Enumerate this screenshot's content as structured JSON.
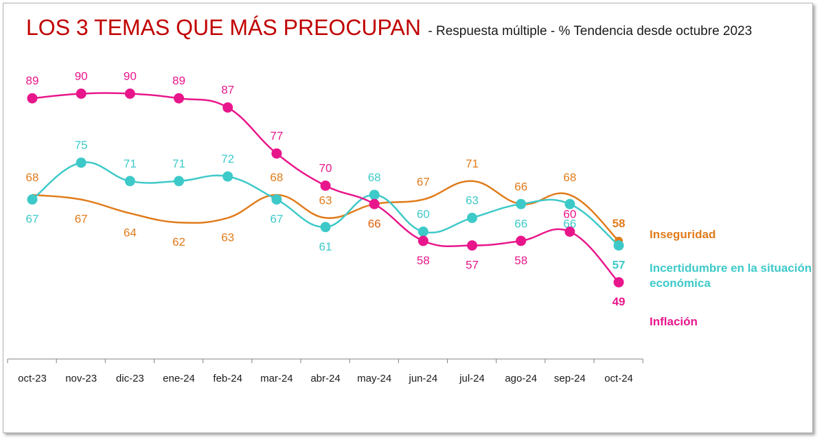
{
  "title": "LOS 3 TEMAS QUE MÁS PREOCUPAN",
  "subtitle": "- Respuesta múltiple - % Tendencia desde octubre 2023",
  "colors": {
    "title": "#c00000",
    "inseguridad": "#e07b1a",
    "incertidumbre": "#3ec9c9",
    "inflacion": "#e8168b",
    "axis": "#808080"
  },
  "legend": {
    "inseguridad": "Inseguridad",
    "incertidumbre_line1": "Incertidumbre en la situación",
    "incertidumbre_line2": "económica",
    "inflacion": "Inflación"
  },
  "chart_data": {
    "type": "line",
    "title": "LOS 3 TEMAS QUE MÁS PREOCUPAN",
    "subtitle": "- Respuesta múltiple - % Tendencia desde octubre 2023",
    "categories": [
      "oct-23",
      "nov-23",
      "dic-23",
      "ene-24",
      "feb-24",
      "mar-24",
      "abr-24",
      "may-24",
      "jun-24",
      "jul-24",
      "ago-24",
      "sep-24",
      "oct-24"
    ],
    "ylim": [
      40,
      100
    ],
    "grid": false,
    "legend_position": "right",
    "series": [
      {
        "key": "inflacion",
        "name": "Inflación",
        "color": "#e8168b",
        "markers": true,
        "values": [
          89,
          90,
          90,
          89,
          87,
          77,
          70,
          66,
          58,
          57,
          58,
          60,
          49
        ],
        "labels": [
          "89",
          "90",
          "90",
          "89",
          "87",
          "77",
          "70",
          "66",
          "58",
          "57",
          "58",
          "60",
          "49"
        ],
        "label_pos": [
          "above",
          "above",
          "above",
          "above",
          "above",
          "above",
          "above",
          "below",
          "below",
          "below",
          "below",
          "above",
          "below"
        ]
      },
      {
        "key": "incertidumbre",
        "name": "Incertidumbre en la situación económica",
        "color": "#3ec9c9",
        "markers": true,
        "values": [
          67,
          75,
          71,
          71,
          72,
          67,
          61,
          68,
          60,
          63,
          66,
          66,
          57
        ],
        "labels": [
          "67",
          "75",
          "71",
          "71",
          "72",
          "67",
          "61",
          "68",
          "60",
          "63",
          "66",
          "66",
          "57"
        ],
        "label_pos": [
          "below",
          "above",
          "above",
          "above",
          "above",
          "below",
          "below",
          "above",
          "above",
          "above",
          "below",
          "below",
          "below"
        ]
      },
      {
        "key": "inseguridad",
        "name": "Inseguridad",
        "color": "#e07b1a",
        "markers": false,
        "values": [
          68,
          67,
          64,
          62,
          63,
          68,
          63,
          66,
          67,
          71,
          66,
          68,
          58
        ],
        "labels": [
          "68",
          "67",
          "64",
          "62",
          "63",
          "68",
          "63",
          "66",
          "67",
          "71",
          "66",
          "68",
          "58"
        ],
        "label_pos": [
          "above",
          "below",
          "below",
          "below",
          "below",
          "above",
          "above",
          "below",
          "above",
          "above",
          "above",
          "above",
          "above"
        ]
      }
    ]
  }
}
